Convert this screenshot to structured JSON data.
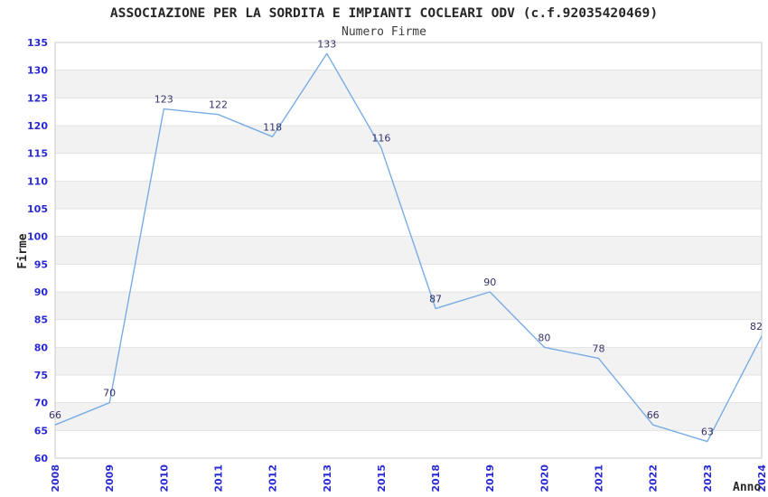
{
  "chart_data": {
    "type": "line",
    "title": "ASSOCIAZIONE PER LA SORDITA E IMPIANTI COCLEARI ODV (c.f.92035420469)",
    "subtitle": "Numero Firme",
    "xlabel": "Anno",
    "ylabel": "Firme",
    "categories": [
      "2008",
      "2009",
      "2010",
      "2011",
      "2012",
      "2013",
      "2015",
      "2018",
      "2019",
      "2020",
      "2021",
      "2022",
      "2023",
      "2024"
    ],
    "values": [
      66,
      70,
      123,
      122,
      118,
      133,
      116,
      87,
      90,
      80,
      78,
      66,
      63,
      82
    ],
    "ylim": [
      60,
      135
    ],
    "ytick_step": 5,
    "grid": true,
    "legend": "none",
    "stripes": "alternating horizontal bands every 5 units, white band at top (130-135)",
    "colors": {
      "line": "#79ace5",
      "tick_label": "#2929d2",
      "data_label": "#333369",
      "stripe": "#f2f2f2",
      "gridline": "#e3e3e3",
      "plot_border": "#c9c9c9",
      "background": "#ffffff"
    }
  }
}
